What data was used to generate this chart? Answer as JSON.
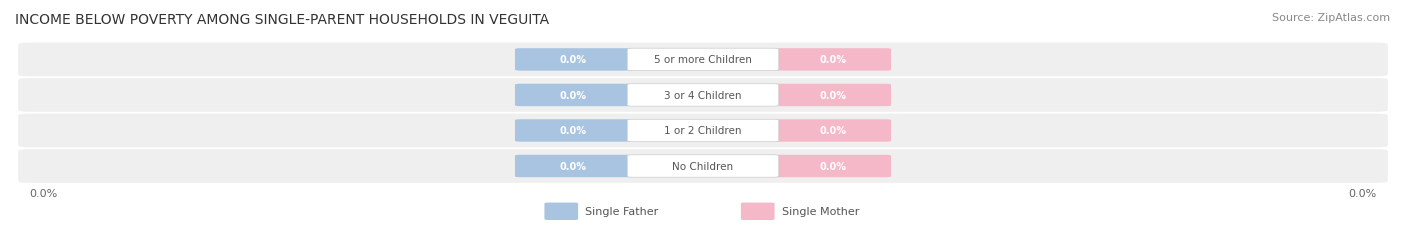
{
  "title": "INCOME BELOW POVERTY AMONG SINGLE-PARENT HOUSEHOLDS IN VEGUITA",
  "source": "Source: ZipAtlas.com",
  "categories": [
    "No Children",
    "1 or 2 Children",
    "3 or 4 Children",
    "5 or more Children"
  ],
  "father_values": [
    0.0,
    0.0,
    0.0,
    0.0
  ],
  "mother_values": [
    0.0,
    0.0,
    0.0,
    0.0
  ],
  "father_color": "#a8c4e0",
  "mother_color": "#f4b8c8",
  "row_bg_color": "#efefef",
  "title_fontsize": 10,
  "source_fontsize": 8,
  "axis_label_left": "0.0%",
  "axis_label_right": "0.0%",
  "legend_father": "Single Father",
  "legend_mother": "Single Mother",
  "background_color": "#ffffff"
}
